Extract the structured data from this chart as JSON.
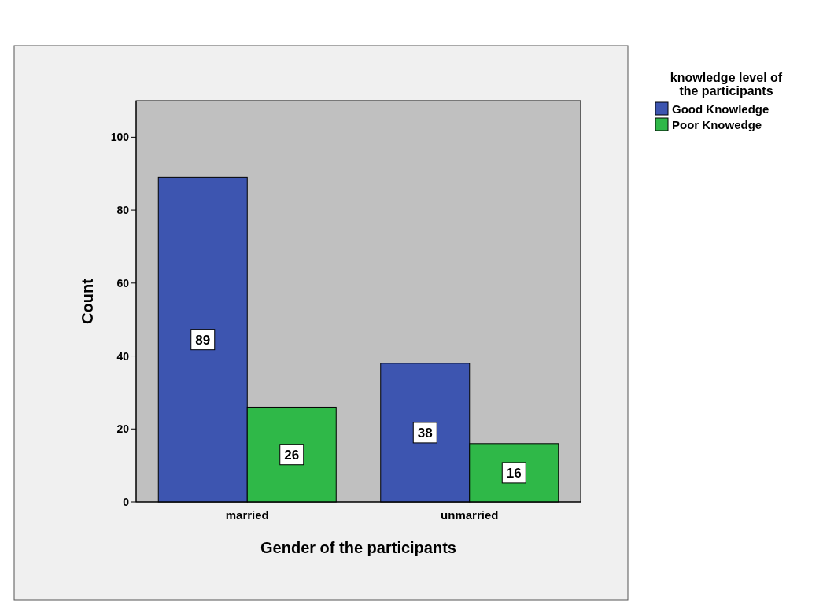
{
  "chart_data": {
    "type": "bar",
    "xlabel": "Gender of the participants",
    "ylabel": "Count",
    "legend_title": "knowledge level of the participants",
    "categories": [
      "married",
      "unmarried"
    ],
    "series": [
      {
        "name": "Good Knowledge",
        "color": "#3d55b0",
        "values": [
          89,
          38
        ]
      },
      {
        "name": "Poor Knowedge",
        "color": "#2fb848",
        "values": [
          26,
          16
        ]
      }
    ],
    "ylim": [
      0,
      110
    ],
    "yticks": [
      0,
      20,
      40,
      60,
      80,
      100
    ],
    "data_labels": true,
    "legend": "top right",
    "grid": false
  }
}
